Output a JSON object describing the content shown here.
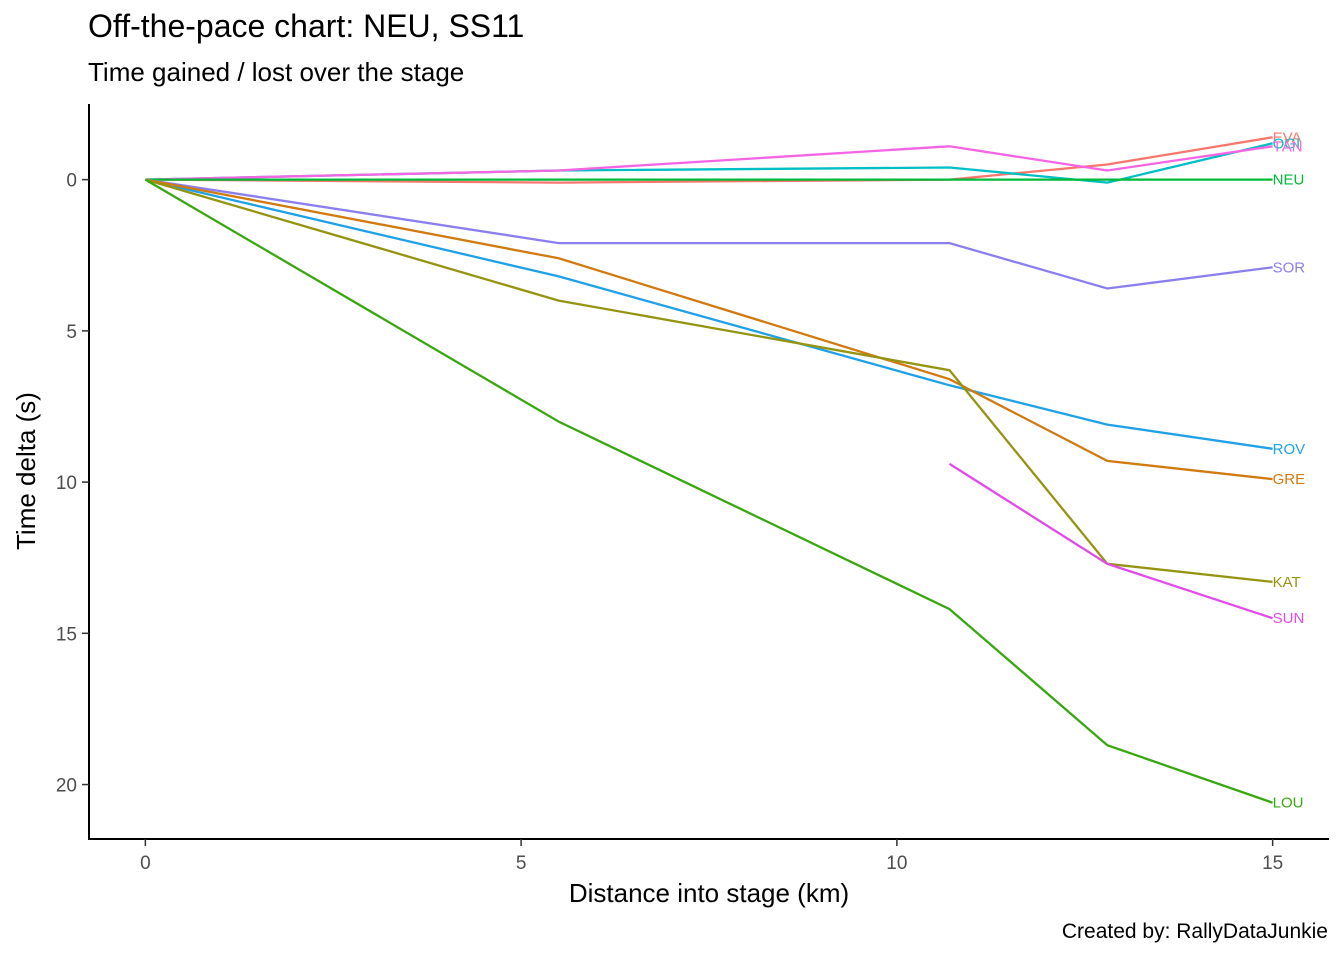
{
  "chart_data": {
    "type": "line",
    "title": "Off-the-pace chart: NEU, SS11",
    "subtitle": "Time gained / lost over the stage",
    "xlabel": "Distance into stage (km)",
    "ylabel": "Time delta (s)",
    "caption": "Created by: RallyDataJunkie",
    "xlim": [
      -0.75,
      15.75
    ],
    "ylim": [
      -2.5,
      21.8
    ],
    "y_reversed": true,
    "x_ticks": [
      0,
      5,
      10,
      15
    ],
    "y_ticks": [
      0,
      5,
      10,
      15,
      20
    ],
    "grid": false,
    "series": [
      {
        "name": "EVA",
        "color": "#F8766D",
        "x": [
          0,
          5.5,
          10.7,
          12.8,
          15
        ],
        "y": [
          0,
          0.1,
          0,
          -0.5,
          -1.4
        ]
      },
      {
        "name": "OGI",
        "color": "#00BFC4",
        "x": [
          0,
          5.5,
          10.7,
          12.8,
          15
        ],
        "y": [
          0,
          -0.3,
          -0.4,
          0.1,
          -1.2
        ]
      },
      {
        "name": "TÄN",
        "color": "#F564E3",
        "x": [
          0,
          5.5,
          10.7,
          12.8,
          15
        ],
        "y": [
          0,
          -0.3,
          -1.1,
          -0.3,
          -1.1
        ]
      },
      {
        "name": "NEU",
        "color": "#00BA38",
        "x": [
          0,
          5.5,
          10.7,
          12.8,
          15
        ],
        "y": [
          0,
          0,
          0,
          0,
          0
        ]
      },
      {
        "name": "SOR",
        "color": "#8B7FF0",
        "x": [
          0,
          5.5,
          10.7,
          12.8,
          15
        ],
        "y": [
          0,
          2.1,
          2.1,
          3.6,
          2.9
        ]
      },
      {
        "name": "ROV",
        "color": "#1FA1E8",
        "x": [
          0,
          5.5,
          10.7,
          12.8,
          15
        ],
        "y": [
          0,
          3.2,
          6.8,
          8.1,
          8.9
        ]
      },
      {
        "name": "GRE",
        "color": "#D07A10",
        "x": [
          0,
          5.5,
          10.7,
          12.8,
          15
        ],
        "y": [
          0,
          2.6,
          6.6,
          9.3,
          9.9
        ]
      },
      {
        "name": "KAT",
        "color": "#959410",
        "x": [
          0,
          5.5,
          10.7,
          12.8,
          15
        ],
        "y": [
          0,
          4.0,
          6.3,
          12.7,
          13.3
        ]
      },
      {
        "name": "SUN",
        "color": "#E24BE8",
        "x": [
          10.7,
          12.8,
          15
        ],
        "y": [
          9.4,
          12.7,
          14.5
        ]
      },
      {
        "name": "LOU",
        "color": "#39A810",
        "x": [
          0,
          5.5,
          10.7,
          12.8,
          15
        ],
        "y": [
          0,
          8.0,
          14.2,
          18.7,
          20.6
        ]
      }
    ]
  }
}
